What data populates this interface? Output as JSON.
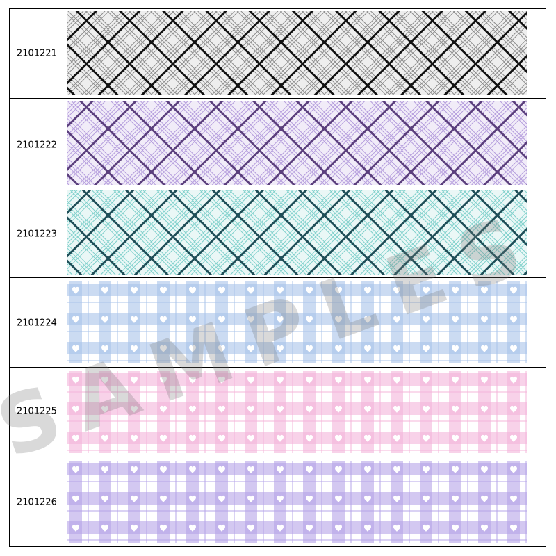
{
  "rows": [
    {
      "code": "2101221"
    },
    {
      "code": "2101222"
    },
    {
      "code": "2101223"
    },
    {
      "code": "2101224"
    },
    {
      "code": "2101225"
    },
    {
      "code": "2101226"
    }
  ],
  "watermark": "SAMPLES"
}
